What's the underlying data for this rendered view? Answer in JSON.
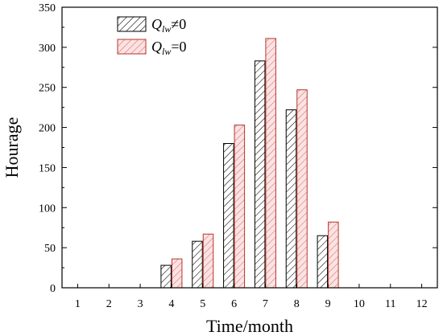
{
  "chart_data": {
    "type": "bar",
    "xlabel": "Time/month",
    "ylabel": "Hourage",
    "categories": [
      "1",
      "2",
      "3",
      "4",
      "5",
      "6",
      "7",
      "8",
      "9",
      "10",
      "11",
      "12"
    ],
    "ylim": [
      0,
      350
    ],
    "yticks": [
      0,
      50,
      100,
      150,
      200,
      250,
      300,
      350
    ],
    "grid": false,
    "legend_position": "top-left",
    "series": [
      {
        "name": "Q_lw≠0",
        "legend": {
          "symbol": "Q",
          "sub": "lw",
          "rel": "≠0"
        },
        "values": [
          0,
          0,
          0,
          28,
          58,
          180,
          283,
          222,
          65,
          0,
          0,
          0
        ],
        "stroke": "#000000",
        "hatch": "#000000",
        "fill": "#ffffff"
      },
      {
        "name": "Q_lw=0",
        "legend": {
          "symbol": "Q",
          "sub": "lw",
          "rel": "=0"
        },
        "values": [
          0,
          0,
          0,
          36,
          67,
          203,
          311,
          247,
          82,
          0,
          0,
          0
        ],
        "stroke": "#b5362d",
        "hatch": "#e06a6a",
        "fill": "#fbe3e3"
      }
    ]
  }
}
